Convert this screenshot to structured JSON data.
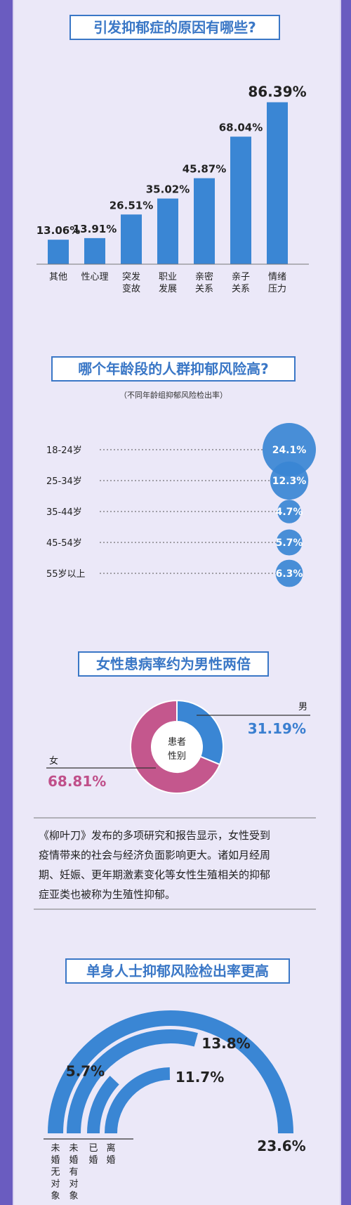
{
  "colors": {
    "page_bg": "#ebe8f8",
    "frame": "#6a5cc0",
    "bar": "#3a86d4",
    "title_text": "#3a77c6",
    "title_border": "#3a77c6",
    "bubble": "#3a86d4",
    "male": "#3a86d4",
    "female": "#c4578d",
    "arc": "#3a86d4"
  },
  "sections": {
    "causes": {
      "title": "引发抑郁症的原因有哪些?"
    },
    "age": {
      "title": "哪个年龄段的人群抑郁风险高?",
      "subtitle": "（不同年龄组抑郁风险检出率）"
    },
    "gender": {
      "title": "女性患病率约为男性两倍"
    },
    "text": {
      "lines": [
        "《柳叶刀》发布的多项研究和报告显示，女性受到",
        "疫情带来的社会与经济负面影响更大。诸如月经周",
        "期、妊娠、更年期激素变化等女性生殖相关的抑郁",
        "症亚类也被称为生殖性抑郁。"
      ]
    },
    "marital": {
      "title": "单身人士抑郁风险检出率更高"
    }
  },
  "chart_data": [
    {
      "type": "bar",
      "title": "引发抑郁症的原因有哪些?",
      "categories": [
        "其他",
        "性心理",
        "突发变故",
        "职业发展",
        "亲密关系",
        "亲子关系",
        "情绪压力"
      ],
      "category_lines": [
        [
          "其他"
        ],
        [
          "性心理"
        ],
        [
          "突发",
          "变故"
        ],
        [
          "职业",
          "发展"
        ],
        [
          "亲密",
          "关系"
        ],
        [
          "亲子",
          "关系"
        ],
        [
          "情绪",
          "压力"
        ]
      ],
      "values": [
        13.06,
        13.91,
        26.51,
        35.02,
        45.87,
        68.04,
        86.39
      ],
      "value_labels": [
        "13.06%",
        "13.91%",
        "26.51%",
        "35.02%",
        "45.87%",
        "68.04%",
        "86.39%"
      ],
      "unit": "%",
      "ylim": [
        0,
        90
      ]
    },
    {
      "type": "scatter",
      "title": "哪个年龄段的人群抑郁风险高?",
      "subtitle": "（不同年龄组抑郁风险检出率）",
      "categories": [
        "18-24岁",
        "25-34岁",
        "35-44岁",
        "45-54岁",
        "55岁以上"
      ],
      "values": [
        24.1,
        12.3,
        4.7,
        5.7,
        6.3
      ],
      "value_labels": [
        "24.1%",
        "12.3%",
        "4.7%",
        "5.7%",
        "6.3%"
      ],
      "unit": "%"
    },
    {
      "type": "pie",
      "title": "女性患病率约为男性两倍",
      "center_label": [
        "患者",
        "性别"
      ],
      "categories": [
        "男",
        "女"
      ],
      "values": [
        31.19,
        68.81
      ],
      "value_labels": [
        "31.19%",
        "68.81%"
      ],
      "unit": "%"
    },
    {
      "type": "bar",
      "title": "单身人士抑郁风险检出率更高",
      "categories": [
        "未婚无对象",
        "未婚有对象",
        "已婚",
        "离婚"
      ],
      "category_lines": [
        [
          "未",
          "婚",
          "无",
          "对",
          "象"
        ],
        [
          "未",
          "婚",
          "有",
          "对",
          "象"
        ],
        [
          "已",
          "婚"
        ],
        [
          "离",
          "婚"
        ]
      ],
      "values": [
        23.6,
        13.8,
        5.7,
        11.7
      ],
      "value_labels": [
        "23.6%",
        "13.8%",
        "5.7%",
        "11.7%"
      ],
      "unit": "%",
      "ylim": [
        0,
        25
      ]
    }
  ]
}
